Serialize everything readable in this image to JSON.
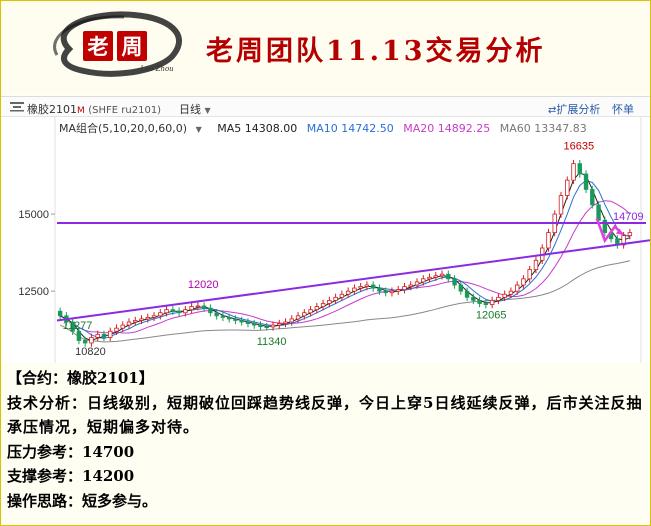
{
  "banner": {
    "title": "老周团队11.13交易分析",
    "logo_text": "老周",
    "logo_sub": "Lao Zhou"
  },
  "toolbar": {
    "symbol_name": "橡胶2101",
    "symbol_mark": "M",
    "symbol_code": "(SHFE ru2101)",
    "period": "日线",
    "expand_label": "扩展分析",
    "help_label": "怀单"
  },
  "ma_legend": {
    "combo": "MA组合(5,10,20,0,60,0)",
    "ma5": "MA5 14308.00",
    "ma10": "MA10 14742.50",
    "ma20": "MA20 14892.25",
    "ma60": "MA60 13347.83"
  },
  "colors": {
    "banner_title": "#b40000",
    "trendline": "#8a2be2",
    "up_candle": "#d11e1e",
    "down_candle": "#1a9a5a",
    "ma5": "#222222",
    "ma10": "#2a6fd6",
    "ma20": "#c83cc8",
    "ma60": "#888888",
    "arrow": "#e040e0"
  },
  "chart_data": {
    "type": "line",
    "title": "",
    "ylabel": "",
    "ylim": [
      10300,
      17500
    ],
    "yticks": [
      12500,
      15000
    ],
    "yticks_labels": [
      "12500",
      "15000"
    ],
    "horizontal_line": {
      "value": 14709,
      "label": "14709"
    },
    "annotations": [
      {
        "label": "16635",
        "value": 16635
      },
      {
        "label": "12020",
        "value": 12020
      },
      {
        "label": "12065",
        "value": 12065
      },
      {
        "label": "11340",
        "value": 11340
      },
      {
        "label": "10820",
        "value": 10820
      },
      {
        "label": "11277",
        "value": 11277
      }
    ],
    "trendline": {
      "start_value": 11550,
      "end_value": 14150
    },
    "closes": [
      11700,
      11500,
      11200,
      10900,
      10820,
      11000,
      11100,
      11000,
      11200,
      11300,
      11400,
      11500,
      11550,
      11600,
      11650,
      11700,
      11800,
      11900,
      11850,
      11800,
      11900,
      12000,
      12020,
      11950,
      11800,
      11700,
      11650,
      11600,
      11550,
      11500,
      11450,
      11400,
      11350,
      11340,
      11400,
      11450,
      11500,
      11600,
      11700,
      11800,
      11900,
      12000,
      12100,
      12200,
      12300,
      12400,
      12500,
      12600,
      12650,
      12700,
      12600,
      12500,
      12450,
      12500,
      12550,
      12650,
      12700,
      12800,
      12900,
      12950,
      13000,
      13050,
      12900,
      12700,
      12500,
      12300,
      12200,
      12100,
      12065,
      12200,
      12300,
      12400,
      12500,
      12700,
      12900,
      13200,
      13500,
      13900,
      14400,
      15000,
      15600,
      16100,
      16635,
      16300,
      15800,
      15300,
      14800,
      14400,
      14200,
      14000,
      14300,
      14400
    ]
  },
  "analysis": {
    "contract_line": "【合约：橡胶2101】",
    "technical": "技术分析：日线级别，短期破位回踩趋势线反弹，今日上穿5日线延续反弹，后市关注反抽承压情况，短期偏多对待。",
    "resistance": "压力参考：14700",
    "support": "支撑参考：14200",
    "strategy": "操作思路：短多参与。"
  }
}
